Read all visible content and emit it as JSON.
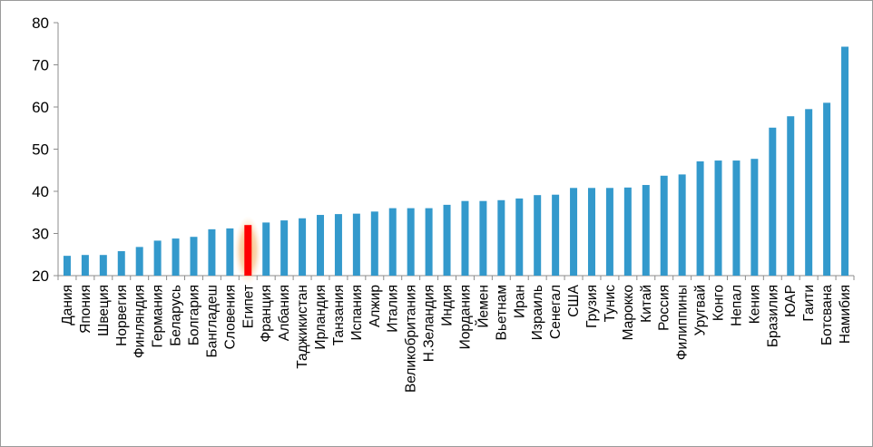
{
  "chart_data": {
    "type": "bar",
    "title": "",
    "xlabel": "",
    "ylabel": "",
    "ylim": [
      20,
      80
    ],
    "yticks": [
      20,
      30,
      40,
      50,
      60,
      70,
      80
    ],
    "grid": false,
    "legend": "none",
    "bar_color": "#3399cc",
    "highlight_color": "#ff0000",
    "highlight_glow_color": "#f7b26a",
    "highlight_category": "Египет",
    "categories": [
      "Дания",
      "Япония",
      "Швеция",
      "Норвегия",
      "Финляндия",
      "Германия",
      "Беларусь",
      "Болгария",
      "Бангладеш",
      "Словения",
      "Египет",
      "Франция",
      "Албания",
      "Таджикистан",
      "Ирландия",
      "Танзания",
      "Испания",
      "Алжир",
      "Италия",
      "Великобритания",
      "Н.Зеландия",
      "Индия",
      "Иордания",
      "Йемен",
      "Вьетнам",
      "Иран",
      "Израиль",
      "Сенегал",
      "США",
      "Грузия",
      "Тунис",
      "Марокко",
      "Китай",
      "Россия",
      "Филиппины",
      "Уругвай",
      "Конго",
      "Непал",
      "Кения",
      "Бразилия",
      "ЮАР",
      "Гаити",
      "Ботсвана",
      "Намибия"
    ],
    "values": [
      24.7,
      24.9,
      24.9,
      25.8,
      26.8,
      28.3,
      28.8,
      29.2,
      31.0,
      31.2,
      32.0,
      32.6,
      33.1,
      33.6,
      34.4,
      34.6,
      34.7,
      35.2,
      36.0,
      36.0,
      36.0,
      36.8,
      37.7,
      37.7,
      37.9,
      38.3,
      39.1,
      39.2,
      40.8,
      40.8,
      40.8,
      40.9,
      41.5,
      43.7,
      44.0,
      47.1,
      47.3,
      47.3,
      47.7,
      55.1,
      57.8,
      59.5,
      61.0,
      74.3
    ]
  }
}
